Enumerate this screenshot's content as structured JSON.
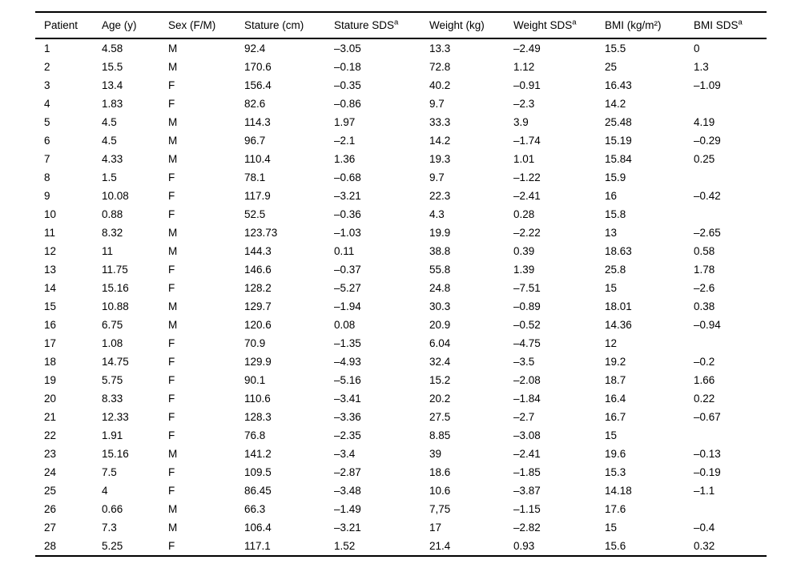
{
  "table": {
    "columns": [
      {
        "key": "patient",
        "label": "Patient"
      },
      {
        "key": "age",
        "label": "Age (y)"
      },
      {
        "key": "sex",
        "label": "Sex (F/M)"
      },
      {
        "key": "stature",
        "label": "Stature (cm)"
      },
      {
        "key": "stature_sds",
        "label": "Stature SDS",
        "sup": "a"
      },
      {
        "key": "weight",
        "label": "Weight (kg)"
      },
      {
        "key": "weight_sds",
        "label": "Weight SDS",
        "sup": "a"
      },
      {
        "key": "bmi",
        "label": "BMI (kg/m²)"
      },
      {
        "key": "bmi_sds",
        "label": "BMI SDS",
        "sup": "a"
      }
    ],
    "rows": [
      [
        "1",
        "4.58",
        "M",
        "92.4",
        "–3.05",
        "13.3",
        "–2.49",
        "15.5",
        "0"
      ],
      [
        "2",
        "15.5",
        "M",
        "170.6",
        "–0.18",
        "72.8",
        "1.12",
        "25",
        "1.3"
      ],
      [
        "3",
        "13.4",
        "F",
        "156.4",
        "–0.35",
        "40.2",
        "–0.91",
        "16.43",
        "–1.09"
      ],
      [
        "4",
        "1.83",
        "F",
        "82.6",
        "–0.86",
        "9.7",
        "–2.3",
        "14.2",
        ""
      ],
      [
        "5",
        "4.5",
        "M",
        "114.3",
        "1.97",
        "33.3",
        "3.9",
        "25.48",
        "4.19"
      ],
      [
        "6",
        "4.5",
        "M",
        "96.7",
        "–2.1",
        "14.2",
        "–1.74",
        "15.19",
        "–0.29"
      ],
      [
        "7",
        "4.33",
        "M",
        "110.4",
        "1.36",
        "19.3",
        "1.01",
        "15.84",
        "0.25"
      ],
      [
        "8",
        "1.5",
        "F",
        "78.1",
        "–0.68",
        "9.7",
        "–1.22",
        "15.9",
        ""
      ],
      [
        "9",
        "10.08",
        "F",
        "117.9",
        "–3.21",
        "22.3",
        "–2.41",
        "16",
        "–0.42"
      ],
      [
        "10",
        "0.88",
        "F",
        "52.5",
        "–0.36",
        "4.3",
        "0.28",
        "15.8",
        ""
      ],
      [
        "11",
        "8.32",
        "M",
        "123.73",
        "–1.03",
        "19.9",
        "–2.22",
        "13",
        "–2.65"
      ],
      [
        "12",
        "11",
        "M",
        "144.3",
        "0.11",
        "38.8",
        "0.39",
        "18.63",
        "0.58"
      ],
      [
        "13",
        "11.75",
        "F",
        "146.6",
        "–0.37",
        "55.8",
        "1.39",
        "25.8",
        "1.78"
      ],
      [
        "14",
        "15.16",
        "F",
        "128.2",
        "–5.27",
        "24.8",
        "–7.51",
        "15",
        "–2.6"
      ],
      [
        "15",
        "10.88",
        "M",
        "129.7",
        "–1.94",
        "30.3",
        "–0.89",
        "18.01",
        "0.38"
      ],
      [
        "16",
        "6.75",
        "M",
        "120.6",
        "0.08",
        "20.9",
        "–0.52",
        "14.36",
        "–0.94"
      ],
      [
        "17",
        "1.08",
        "F",
        "70.9",
        "–1.35",
        "6.04",
        "–4.75",
        "12",
        ""
      ],
      [
        "18",
        "14.75",
        "F",
        "129.9",
        "–4.93",
        "32.4",
        "–3.5",
        "19.2",
        "–0.2"
      ],
      [
        "19",
        "5.75",
        "F",
        "90.1",
        "–5.16",
        "15.2",
        "–2.08",
        "18.7",
        "1.66"
      ],
      [
        "20",
        "8.33",
        "F",
        "110.6",
        "–3.41",
        "20.2",
        "–1.84",
        "16.4",
        "0.22"
      ],
      [
        "21",
        "12.33",
        "F",
        "128.3",
        "–3.36",
        "27.5",
        "–2.7",
        "16.7",
        "–0.67"
      ],
      [
        "22",
        "1.91",
        "F",
        "76.8",
        "–2.35",
        "8.85",
        "–3.08",
        "15",
        ""
      ],
      [
        "23",
        "15.16",
        "M",
        "141.2",
        "–3.4",
        "39",
        "–2.41",
        "19.6",
        "–0.13"
      ],
      [
        "24",
        "7.5",
        "F",
        "109.5",
        "–2.87",
        "18.6",
        "–1.85",
        "15.3",
        "–0.19"
      ],
      [
        "25",
        "4",
        "F",
        "86.45",
        "–3.48",
        "10.6",
        "–3.87",
        "14.18",
        "–1.1"
      ],
      [
        "26",
        "0.66",
        "M",
        "66.3",
        "–1.49",
        "7,75",
        "–1.15",
        "17.6",
        ""
      ],
      [
        "27",
        "7.3",
        "M",
        "106.4",
        "–3.21",
        "17",
        "–2.82",
        "15",
        "–0.4"
      ],
      [
        "28",
        "5.25",
        "F",
        "117.1",
        "1.52",
        "21.4",
        "0.93",
        "15.6",
        "0.32"
      ]
    ]
  },
  "colors": {
    "text": "#000000",
    "background": "#ffffff",
    "rule": "#000000"
  }
}
